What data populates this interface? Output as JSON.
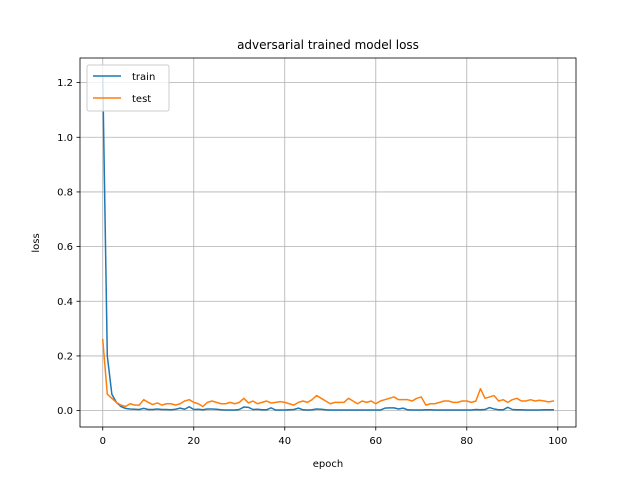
{
  "chart_data": {
    "type": "line",
    "title": "adversarial trained model loss",
    "xlabel": "epoch",
    "ylabel": "loss",
    "xlim": [
      -5,
      104
    ],
    "ylim": [
      -0.06,
      1.29
    ],
    "xticks": [
      0,
      20,
      40,
      60,
      80,
      100
    ],
    "yticks": [
      0.0,
      0.2,
      0.4,
      0.6,
      0.8,
      1.0,
      1.2
    ],
    "xtick_labels": [
      "0",
      "20",
      "40",
      "60",
      "80",
      "100"
    ],
    "ytick_labels": [
      "0.0",
      "0.2",
      "0.4",
      "0.6",
      "0.8",
      "1.0",
      "1.2"
    ],
    "grid": true,
    "legend_position": "top-left",
    "x": [
      0,
      1,
      2,
      3,
      4,
      5,
      6,
      7,
      8,
      9,
      10,
      11,
      12,
      13,
      14,
      15,
      16,
      17,
      18,
      19,
      20,
      21,
      22,
      23,
      24,
      25,
      26,
      27,
      28,
      29,
      30,
      31,
      32,
      33,
      34,
      35,
      36,
      37,
      38,
      39,
      40,
      41,
      42,
      43,
      44,
      45,
      46,
      47,
      48,
      49,
      50,
      51,
      52,
      53,
      54,
      55,
      56,
      57,
      58,
      59,
      60,
      61,
      62,
      63,
      64,
      65,
      66,
      67,
      68,
      69,
      70,
      71,
      72,
      73,
      74,
      75,
      76,
      77,
      78,
      79,
      80,
      81,
      82,
      83,
      84,
      85,
      86,
      87,
      88,
      89,
      90,
      91,
      92,
      93,
      94,
      95,
      96,
      97,
      98,
      99
    ],
    "series": [
      {
        "name": "train",
        "color": "#1f77b4",
        "values": [
          1.22,
          0.2,
          0.06,
          0.03,
          0.015,
          0.008,
          0.006,
          0.005,
          0.004,
          0.008,
          0.004,
          0.004,
          0.006,
          0.004,
          0.004,
          0.003,
          0.005,
          0.009,
          0.005,
          0.014,
          0.004,
          0.005,
          0.003,
          0.006,
          0.006,
          0.005,
          0.003,
          0.002,
          0.002,
          0.002,
          0.004,
          0.013,
          0.012,
          0.004,
          0.005,
          0.003,
          0.003,
          0.01,
          0.002,
          0.002,
          0.002,
          0.003,
          0.004,
          0.009,
          0.003,
          0.002,
          0.003,
          0.006,
          0.005,
          0.003,
          0.002,
          0.002,
          0.002,
          0.002,
          0.002,
          0.002,
          0.002,
          0.002,
          0.002,
          0.002,
          0.002,
          0.002,
          0.009,
          0.01,
          0.01,
          0.006,
          0.009,
          0.003,
          0.002,
          0.002,
          0.002,
          0.003,
          0.003,
          0.002,
          0.002,
          0.002,
          0.002,
          0.002,
          0.002,
          0.002,
          0.002,
          0.002,
          0.004,
          0.003,
          0.004,
          0.011,
          0.006,
          0.003,
          0.003,
          0.012,
          0.004,
          0.003,
          0.003,
          0.002,
          0.002,
          0.002,
          0.002,
          0.003,
          0.003,
          0.003
        ]
      },
      {
        "name": "test",
        "color": "#ff7f0e",
        "values": [
          0.26,
          0.06,
          0.045,
          0.03,
          0.02,
          0.015,
          0.025,
          0.02,
          0.02,
          0.04,
          0.03,
          0.022,
          0.028,
          0.02,
          0.025,
          0.025,
          0.02,
          0.025,
          0.035,
          0.04,
          0.03,
          0.025,
          0.015,
          0.03,
          0.035,
          0.03,
          0.025,
          0.025,
          0.03,
          0.025,
          0.03,
          0.045,
          0.028,
          0.035,
          0.025,
          0.03,
          0.035,
          0.028,
          0.03,
          0.033,
          0.03,
          0.025,
          0.02,
          0.03,
          0.035,
          0.03,
          0.04,
          0.055,
          0.045,
          0.035,
          0.025,
          0.03,
          0.03,
          0.03,
          0.045,
          0.035,
          0.025,
          0.035,
          0.03,
          0.035,
          0.025,
          0.035,
          0.04,
          0.045,
          0.05,
          0.04,
          0.04,
          0.04,
          0.035,
          0.045,
          0.05,
          0.02,
          0.025,
          0.025,
          0.03,
          0.035,
          0.035,
          0.03,
          0.03,
          0.035,
          0.035,
          0.03,
          0.035,
          0.08,
          0.045,
          0.05,
          0.055,
          0.035,
          0.04,
          0.03,
          0.04,
          0.045,
          0.035,
          0.035,
          0.04,
          0.035,
          0.038,
          0.035,
          0.032,
          0.035
        ]
      }
    ]
  }
}
